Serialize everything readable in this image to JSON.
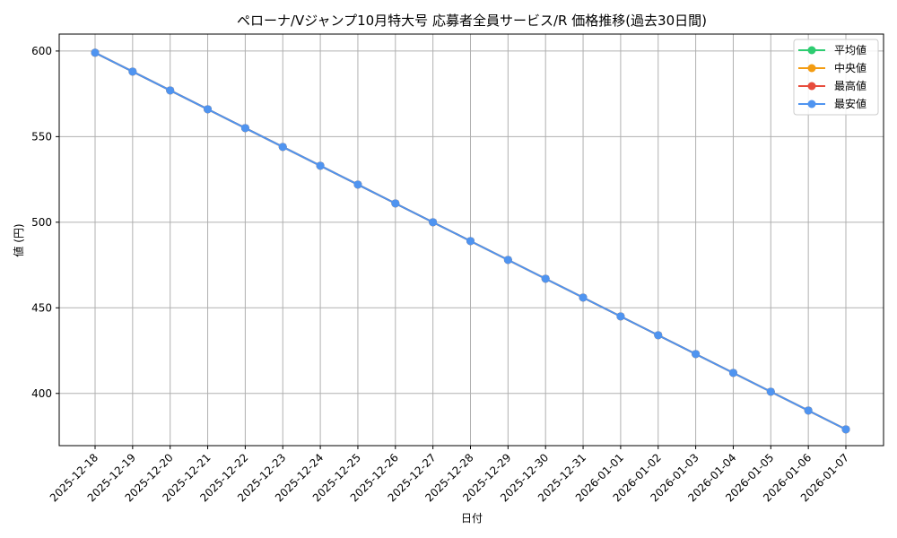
{
  "chart_data": {
    "type": "line",
    "title": "ペローナ/Vジャンプ10月特大号 応募者全員サービス/R 価格推移(過去30日間)",
    "xlabel": "日付",
    "ylabel": "値 (円)",
    "categories": [
      "2025-12-18",
      "2025-12-19",
      "2025-12-20",
      "2025-12-21",
      "2025-12-22",
      "2025-12-23",
      "2025-12-24",
      "2025-12-25",
      "2025-12-26",
      "2025-12-27",
      "2025-12-28",
      "2025-12-29",
      "2025-12-30",
      "2025-12-31",
      "2026-01-01",
      "2026-01-02",
      "2026-01-03",
      "2026-01-04",
      "2026-01-05",
      "2026-01-06",
      "2026-01-07"
    ],
    "series": [
      {
        "name": "平均値",
        "color": "#2ecc71",
        "values": [
          599,
          588,
          577,
          566,
          555,
          544,
          533,
          522,
          511,
          500,
          489,
          478,
          467,
          456,
          445,
          434,
          423,
          412,
          401,
          390,
          379
        ]
      },
      {
        "name": "中央値",
        "color": "#f39c12",
        "values": [
          599,
          588,
          577,
          566,
          555,
          544,
          533,
          522,
          511,
          500,
          489,
          478,
          467,
          456,
          445,
          434,
          423,
          412,
          401,
          390,
          379
        ]
      },
      {
        "name": "最高値",
        "color": "#e74c3c",
        "values": [
          599,
          588,
          577,
          566,
          555,
          544,
          533,
          522,
          511,
          500,
          489,
          478,
          467,
          456,
          445,
          434,
          423,
          412,
          401,
          390,
          379
        ]
      },
      {
        "name": "最安値",
        "color": "#4f94f0",
        "values": [
          599,
          588,
          577,
          566,
          555,
          544,
          533,
          522,
          511,
          500,
          489,
          478,
          467,
          456,
          445,
          434,
          423,
          412,
          401,
          390,
          379
        ]
      }
    ],
    "yticks": [
      400,
      450,
      500,
      550,
      600
    ],
    "ylim": [
      369.5,
      609.9
    ],
    "grid": true,
    "legend_position": "upper right"
  }
}
